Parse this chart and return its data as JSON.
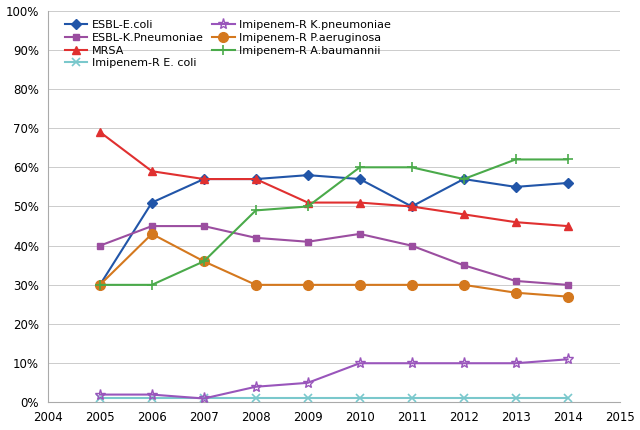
{
  "years": [
    2005,
    2006,
    2007,
    2008,
    2009,
    2010,
    2011,
    2012,
    2013,
    2014
  ],
  "series": [
    {
      "label": "ESBL-E.coli",
      "color": "#2155a8",
      "marker": "D",
      "markersize": 5,
      "markerfilled": true,
      "values": [
        0.3,
        0.51,
        0.57,
        0.57,
        0.58,
        0.57,
        0.5,
        0.57,
        0.55,
        0.56
      ]
    },
    {
      "label": "ESBL-K.Pneumoniae",
      "color": "#9b4ea0",
      "marker": "s",
      "markersize": 5,
      "markerfilled": true,
      "values": [
        0.4,
        0.45,
        0.45,
        0.42,
        0.41,
        0.43,
        0.4,
        0.35,
        0.31,
        0.3
      ]
    },
    {
      "label": "MRSA",
      "color": "#e03030",
      "marker": "^",
      "markersize": 6,
      "markerfilled": true,
      "values": [
        0.69,
        0.59,
        0.57,
        0.57,
        0.51,
        0.51,
        0.5,
        0.48,
        0.46,
        0.45
      ]
    },
    {
      "label": "Imipenem-R E. coli",
      "color": "#7ac8cc",
      "marker": "x",
      "markersize": 6,
      "markerfilled": false,
      "values": [
        0.01,
        0.01,
        0.01,
        0.01,
        0.01,
        0.01,
        0.01,
        0.01,
        0.01,
        0.01
      ]
    },
    {
      "label": "Imipenem-R K.pneumoniae",
      "color": "#9955bb",
      "marker": "*",
      "markersize": 8,
      "markerfilled": false,
      "values": [
        0.02,
        0.02,
        0.01,
        0.04,
        0.05,
        0.1,
        0.1,
        0.1,
        0.1,
        0.11
      ]
    },
    {
      "label": "Imipenem-R P.aeruginosa",
      "color": "#d4781e",
      "marker": "o",
      "markersize": 7,
      "markerfilled": true,
      "values": [
        0.3,
        0.43,
        0.36,
        0.3,
        0.3,
        0.3,
        0.3,
        0.3,
        0.28,
        0.27
      ]
    },
    {
      "label": "Imipenem-R A.baumannii",
      "color": "#4aaa4a",
      "marker": "+",
      "markersize": 7,
      "markerfilled": false,
      "values": [
        0.3,
        0.3,
        0.36,
        0.49,
        0.5,
        0.6,
        0.6,
        0.57,
        0.62,
        0.62
      ]
    }
  ],
  "legend_order": [
    0,
    1,
    2,
    3,
    4,
    5,
    6
  ],
  "xlim": [
    2004,
    2015
  ],
  "ylim": [
    0.0,
    1.0
  ],
  "yticks": [
    0.0,
    0.1,
    0.2,
    0.3,
    0.4,
    0.5,
    0.6,
    0.7,
    0.8,
    0.9,
    1.0
  ],
  "xticks": [
    2004,
    2005,
    2006,
    2007,
    2008,
    2009,
    2010,
    2011,
    2012,
    2013,
    2014,
    2015
  ],
  "grid_color": "#cccccc",
  "background_color": "#ffffff",
  "legend_fontsize": 8.0,
  "tick_fontsize": 8.5,
  "linewidth": 1.5
}
